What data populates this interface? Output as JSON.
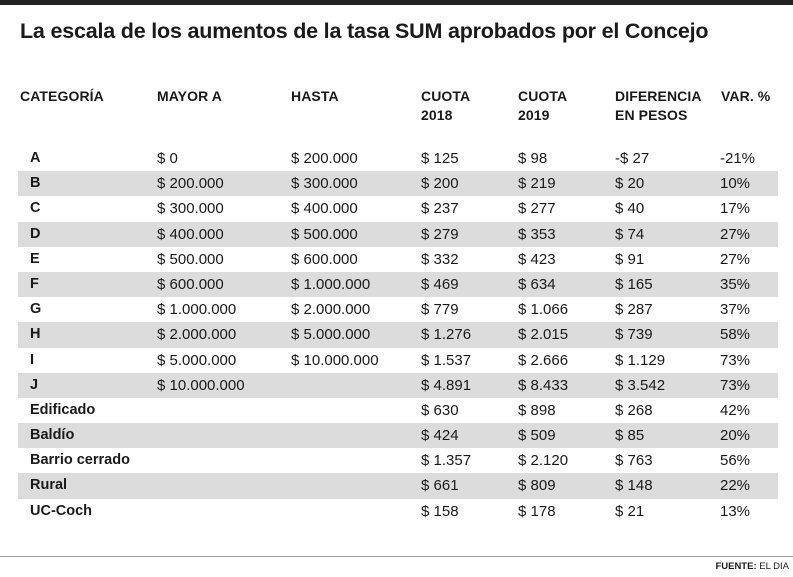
{
  "title": "La escala de los aumentos de la tasa SUM aprobados por el Concejo",
  "headers": {
    "categoria": "CATEGORÍA",
    "mayor": "MAYOR A",
    "hasta": "HASTA",
    "cuota2018": [
      "CUOTA",
      "2018"
    ],
    "cuota2019": [
      "CUOTA",
      "2019"
    ],
    "diferencia": [
      "DIFERENCIA",
      "EN PESOS"
    ],
    "var": "VAR. %"
  },
  "rows": [
    {
      "cat": "A",
      "mayor": "$ 0",
      "hasta": "$ 200.000",
      "c2018": "$ 125",
      "c2019": "$ 98",
      "dif": "-$ 27",
      "var": "-21%"
    },
    {
      "cat": "B",
      "mayor": "$ 200.000",
      "hasta": "$ 300.000",
      "c2018": "$ 200",
      "c2019": "$ 219",
      "dif": "$ 20",
      "var": "10%"
    },
    {
      "cat": "C",
      "mayor": "$ 300.000",
      "hasta": "$ 400.000",
      "c2018": "$ 237",
      "c2019": "$ 277",
      "dif": "$ 40",
      "var": "17%"
    },
    {
      "cat": "D",
      "mayor": "$ 400.000",
      "hasta": "$ 500.000",
      "c2018": "$ 279",
      "c2019": "$ 353",
      "dif": "$ 74",
      "var": "27%"
    },
    {
      "cat": "E",
      "mayor": "$ 500.000",
      "hasta": "$ 600.000",
      "c2018": "$ 332",
      "c2019": "$ 423",
      "dif": "$ 91",
      "var": "27%"
    },
    {
      "cat": "F",
      "mayor": "$ 600.000",
      "hasta": "$ 1.000.000",
      "c2018": "$ 469",
      "c2019": "$ 634",
      "dif": "$ 165",
      "var": "35%"
    },
    {
      "cat": "G",
      "mayor": "$ 1.000.000",
      "hasta": "$ 2.000.000",
      "c2018": "$ 779",
      "c2019": "$ 1.066",
      "dif": "$ 287",
      "var": "37%"
    },
    {
      "cat": "H",
      "mayor": "$ 2.000.000",
      "hasta": "$ 5.000.000",
      "c2018": "$ 1.276",
      "c2019": "$ 2.015",
      "dif": "$ 739",
      "var": "58%"
    },
    {
      "cat": "I",
      "mayor": "$ 5.000.000",
      "hasta": "$ 10.000.000",
      "c2018": "$ 1.537",
      "c2019": "$ 2.666",
      "dif": "$ 1.129",
      "var": "73%"
    },
    {
      "cat": "J",
      "mayor": "$ 10.000.000",
      "hasta": "",
      "c2018": "$ 4.891",
      "c2019": "$ 8.433",
      "dif": "$ 3.542",
      "var": "73%"
    },
    {
      "cat": "Edificado",
      "mayor": "",
      "hasta": "",
      "c2018": "$ 630",
      "c2019": "$ 898",
      "dif": "$ 268",
      "var": "42%"
    },
    {
      "cat": "Baldío",
      "mayor": "",
      "hasta": "",
      "c2018": "$ 424",
      "c2019": "$ 509",
      "dif": "$ 85",
      "var": "20%"
    },
    {
      "cat": "Barrio cerrado",
      "mayor": "",
      "hasta": "",
      "c2018": "$ 1.357",
      "c2019": "$ 2.120",
      "dif": "$ 763",
      "var": "56%"
    },
    {
      "cat": "Rural",
      "mayor": "",
      "hasta": "",
      "c2018": "$ 661",
      "c2019": "$ 809",
      "dif": "$ 148",
      "var": "22%"
    },
    {
      "cat": "UC-Coch",
      "mayor": "",
      "hasta": "",
      "c2018": "$ 158",
      "c2019": "$ 178",
      "dif": "$ 21",
      "var": "13%"
    }
  ],
  "source": {
    "label": "FUENTE:",
    "text": "EL DIA"
  },
  "colors": {
    "shaded_row": "#dcdcdc",
    "text": "#1a1a1a",
    "top_bar": "#222222"
  }
}
